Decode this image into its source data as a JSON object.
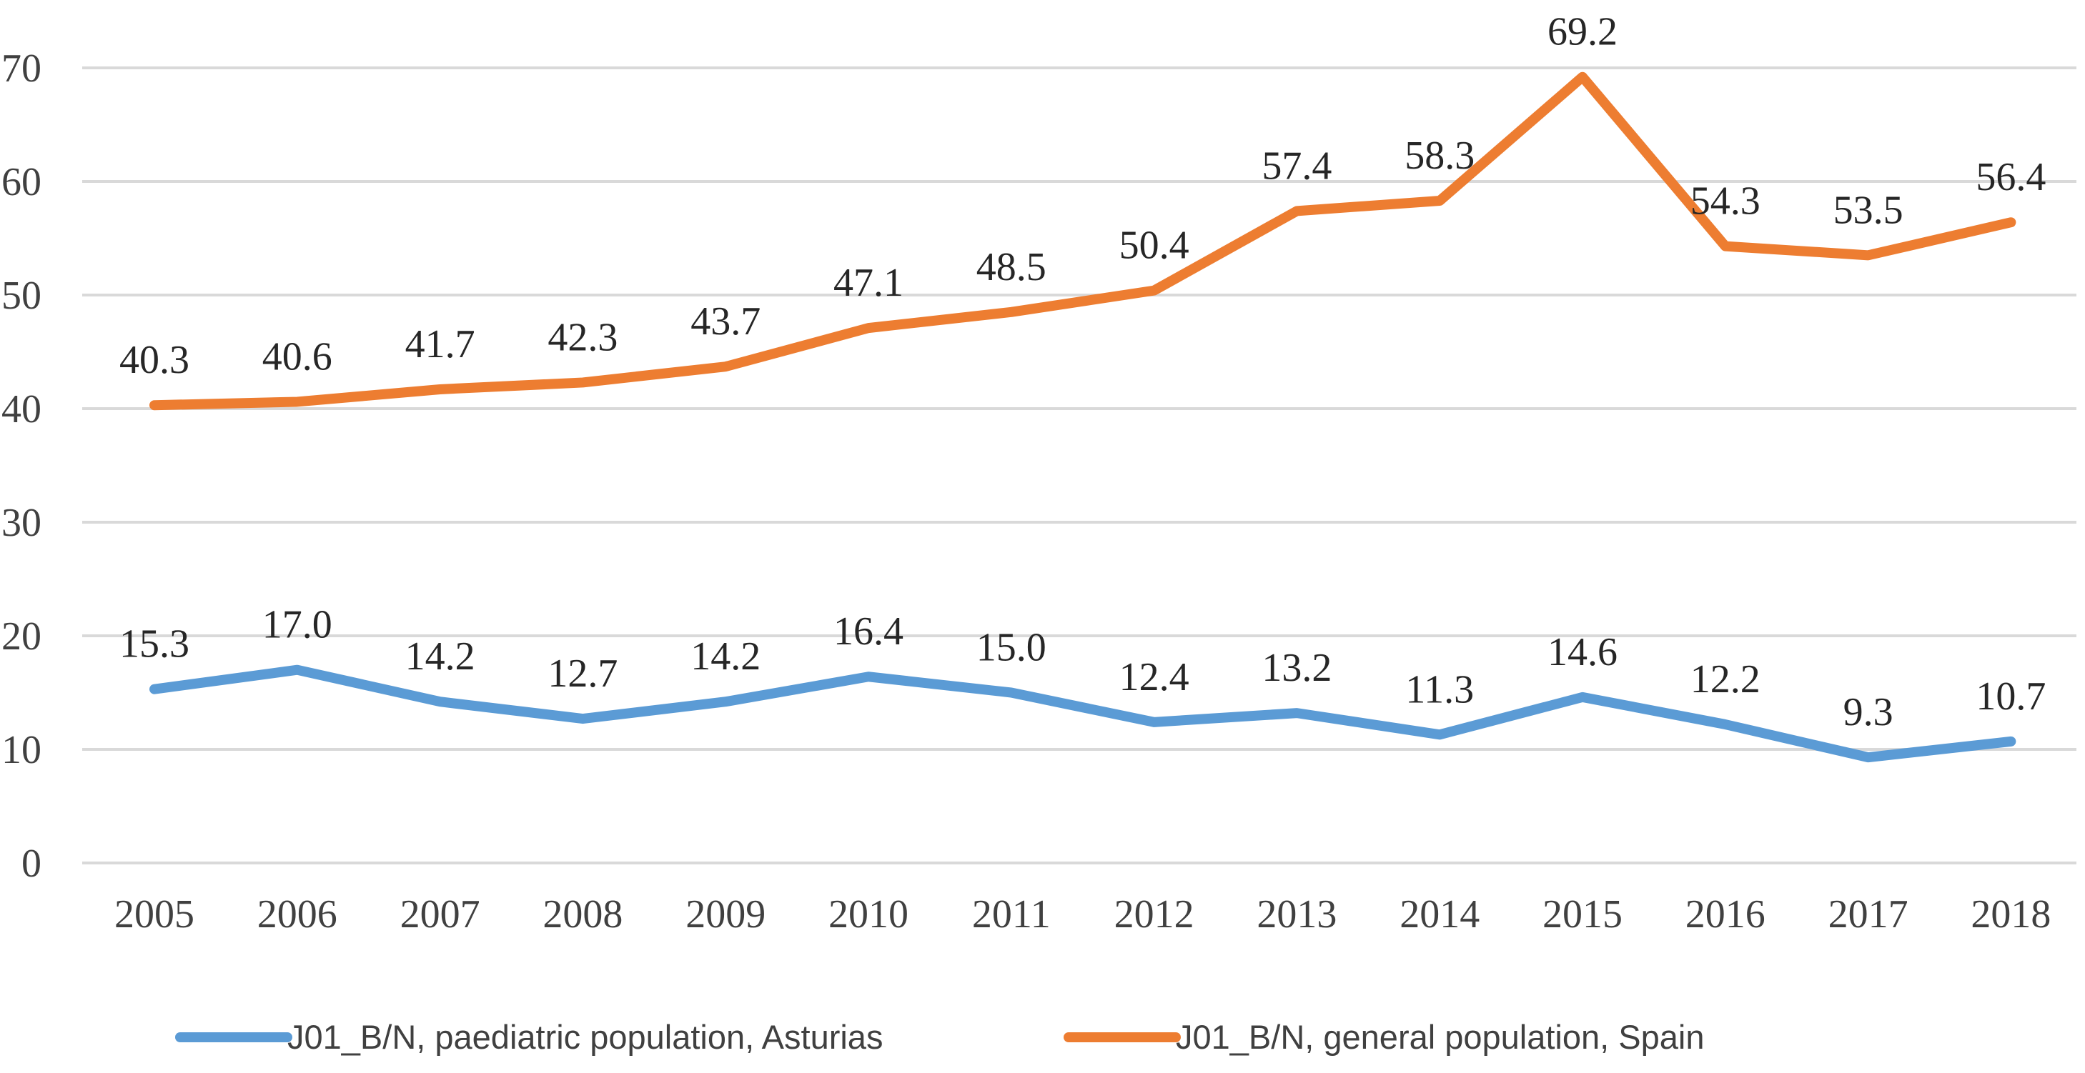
{
  "chart_data": {
    "type": "line",
    "categories": [
      "2005",
      "2006",
      "2007",
      "2008",
      "2009",
      "2010",
      "2011",
      "2012",
      "2013",
      "2014",
      "2015",
      "2016",
      "2017",
      "2018"
    ],
    "series": [
      {
        "name": "J01_B/N, paediatric population, Asturias",
        "color": "#5b9bd5",
        "values": [
          15.3,
          17.0,
          14.2,
          12.7,
          14.2,
          16.4,
          15.0,
          12.4,
          13.2,
          11.3,
          14.6,
          12.2,
          9.3,
          10.7
        ],
        "labels": [
          "15.3",
          "17.0",
          "14.2",
          "12.7",
          "14.2",
          "16.4",
          "15.0",
          "12.4",
          "13.2",
          "11.3",
          "14.6",
          "12.2",
          "9.3",
          "10.7"
        ]
      },
      {
        "name": "J01_B/N, general population, Spain",
        "color": "#ed7d31",
        "values": [
          40.3,
          40.6,
          41.7,
          42.3,
          43.7,
          47.1,
          48.5,
          50.4,
          57.4,
          58.3,
          69.2,
          54.3,
          53.5,
          56.4
        ],
        "labels": [
          "40.3",
          "40.6",
          "41.7",
          "42.3",
          "43.7",
          "47.1",
          "48.5",
          "50.4",
          "57.4",
          "58.3",
          "69.2",
          "54.3",
          "53.5",
          "56.4"
        ]
      }
    ],
    "yticks": [
      "0",
      "10",
      "20",
      "30",
      "40",
      "50",
      "60",
      "70"
    ],
    "ylim": [
      0,
      70
    ],
    "grid": true,
    "legend_position": "bottom",
    "title": "",
    "xlabel": "",
    "ylabel": ""
  }
}
